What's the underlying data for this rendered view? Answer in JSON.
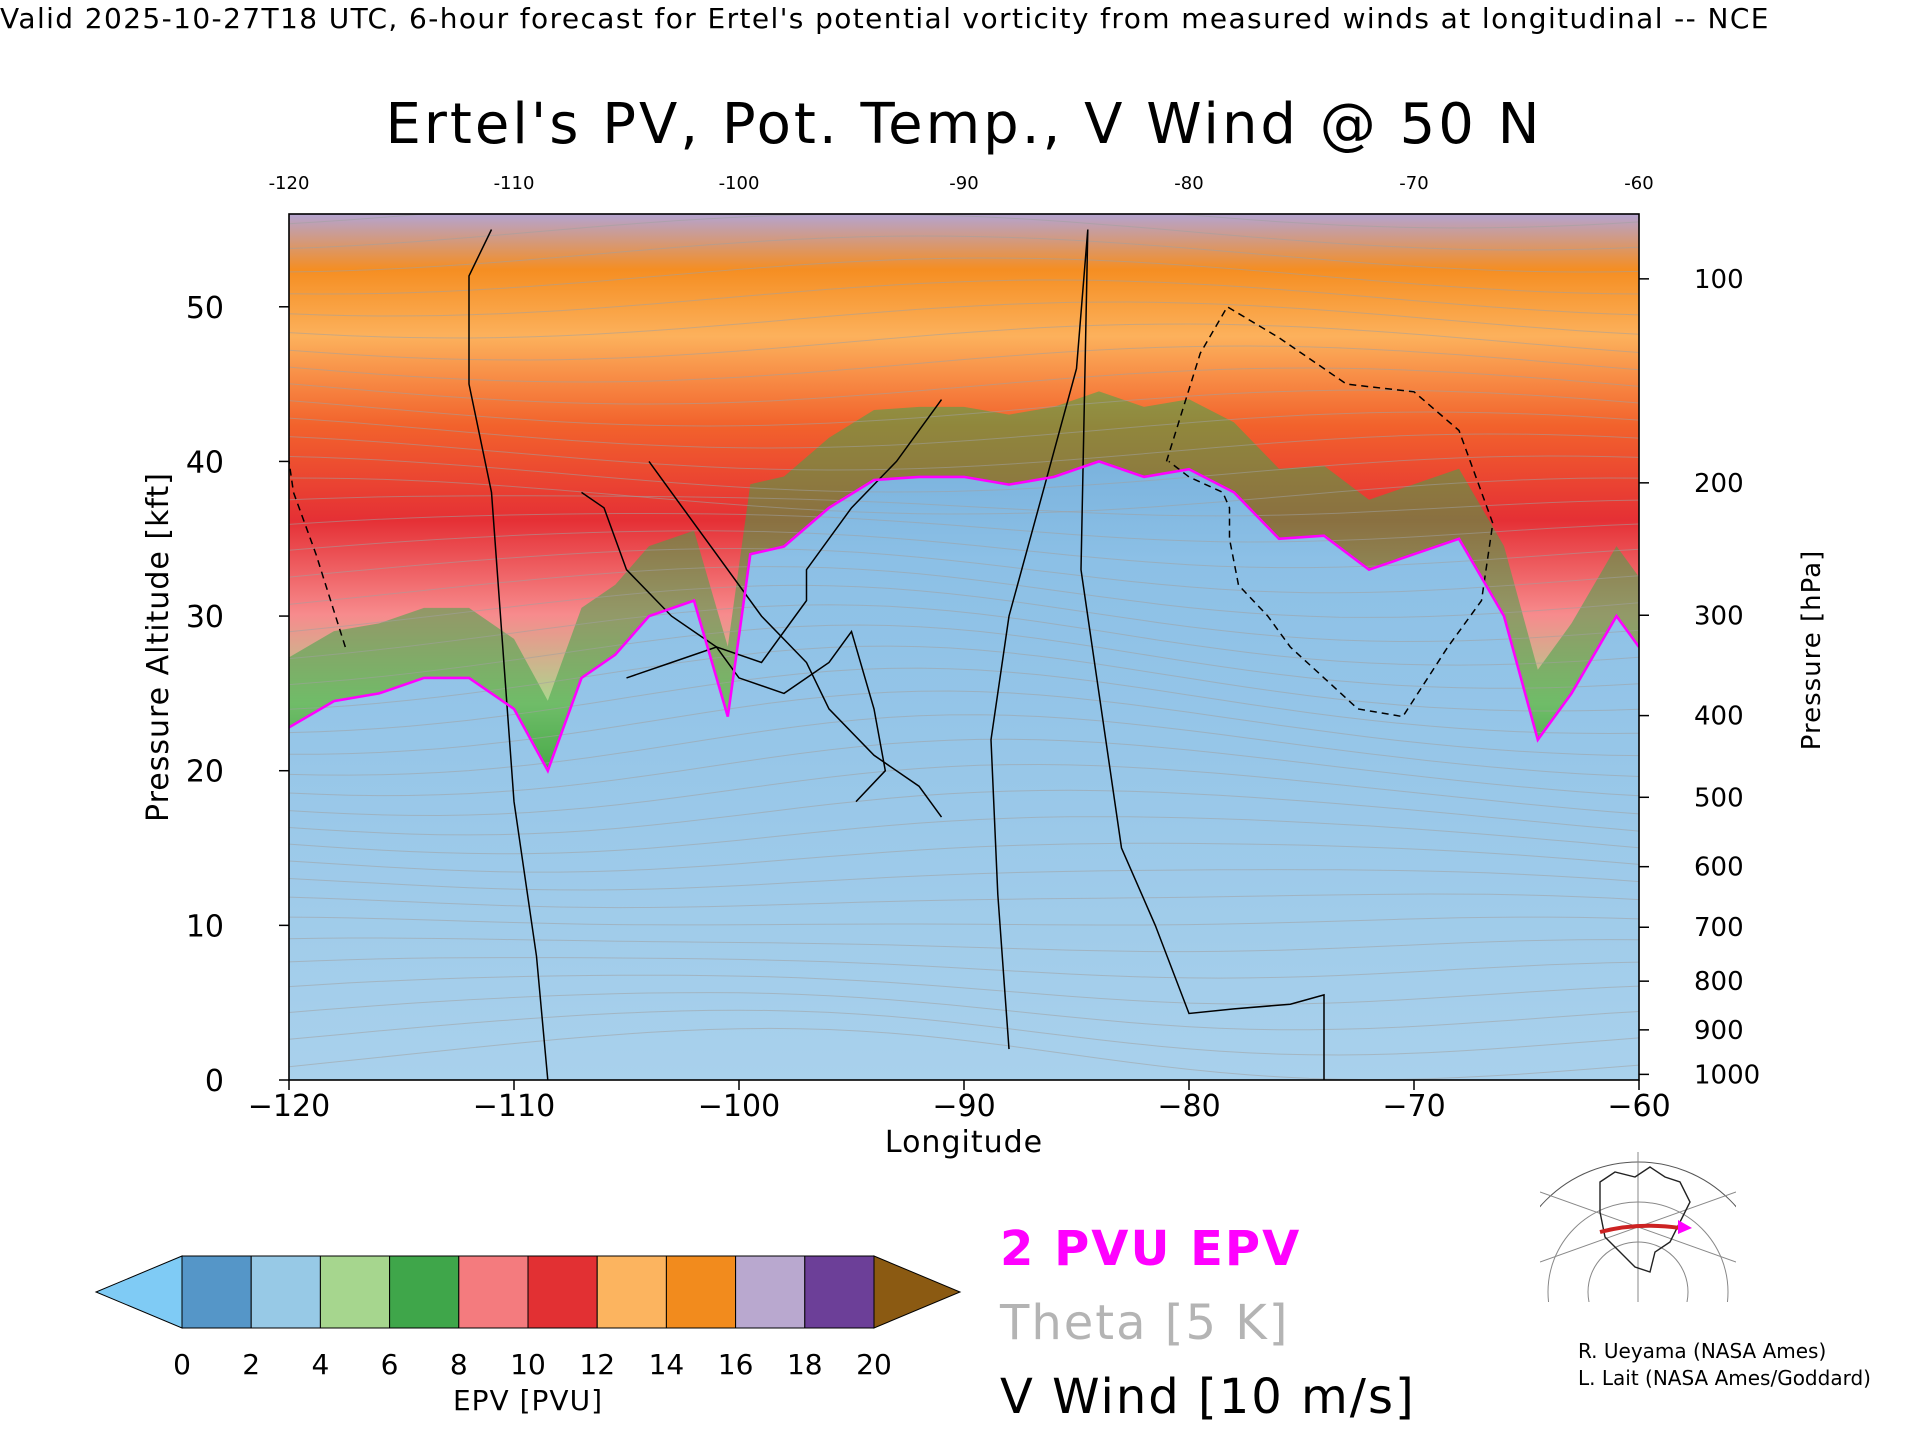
{
  "header": "Valid 2025-10-27T18 UTC, 6-hour forecast for Ertel's potential vorticity from measured winds at longitudinal -- NCE",
  "colors": {
    "pv_contour": "#ff00ff",
    "theta_contour": "#a0a0a0",
    "wind_contour": "#000000",
    "colorbar": [
      "#7fcbf5",
      "#5596c8",
      "#97c9e6",
      "#a6d68e",
      "#3fa64a",
      "#f47b7e",
      "#e23033",
      "#fcb45f",
      "#f28b1d",
      "#b9a8cf",
      "#6c3f98",
      "#fdf5a0",
      "#8b5a12"
    ]
  },
  "chart_data": {
    "type": "heatmap",
    "title": "Ertel's PV, Pot. Temp., V Wind @ 50 N",
    "xlabel": "Longitude",
    "ylabel_left": "Pressure Altitude [kft]",
    "ylabel_right": "Pressure [hPa]",
    "xlim": [
      -120,
      -60
    ],
    "ylim": [
      0,
      56
    ],
    "x_ticks": [
      -120,
      -110,
      -100,
      -90,
      -80,
      -70,
      -60
    ],
    "x_tick_labels": [
      "−120",
      "−110",
      "−100",
      "−90",
      "−80",
      "−70",
      "−60"
    ],
    "top_x_ticks": [
      -120,
      -110,
      -100,
      -90,
      -80,
      -70,
      -60
    ],
    "top_x_tick_labels": [
      "-120",
      "-110",
      "-100",
      "-90",
      "-80",
      "-70",
      "-60"
    ],
    "y_ticks": [
      0,
      10,
      20,
      30,
      40,
      50
    ],
    "y_tick_labels": [
      "0",
      "10",
      "20",
      "30",
      "40",
      "50"
    ],
    "pressure_ticks_hpa": [
      100,
      200,
      300,
      400,
      500,
      600,
      700,
      800,
      900,
      1000
    ],
    "pressure_tick_labels": [
      "100",
      "200",
      "300",
      "400",
      "500",
      "600",
      "700",
      "800",
      "900",
      "1000"
    ],
    "colorbar": {
      "label": "EPV [PVU]",
      "ticks": [
        0,
        2,
        4,
        6,
        8,
        10,
        12,
        14,
        16,
        18,
        20
      ],
      "tick_labels": [
        "0",
        "2",
        "4",
        "6",
        "8",
        "10",
        "12",
        "14",
        "16",
        "18",
        "20"
      ]
    },
    "contours": [
      {
        "name": "2 PVU EPV",
        "x": [
          -120,
          -118,
          -116,
          -114,
          -112,
          -110,
          -108.5,
          -107,
          -105.5,
          -104,
          -102,
          -100.5,
          -99.5,
          -98,
          -96,
          -94,
          -92,
          -90,
          -88,
          -86,
          -84,
          -82,
          -80,
          -78,
          -76,
          -74,
          -72,
          -70,
          -68,
          -66,
          -64.5,
          -63,
          -61,
          -60
        ],
        "y": [
          22.8,
          24.5,
          25,
          26,
          26,
          24,
          20,
          26,
          27.5,
          30,
          31,
          23.5,
          34,
          34.5,
          37,
          38.8,
          39,
          39,
          38.5,
          39,
          40,
          39,
          39.5,
          38,
          35,
          35.2,
          33,
          34,
          35,
          30,
          22,
          25,
          30,
          28
        ]
      },
      {
        "name": "V Wind 0 (left)",
        "x": [
          -108.5,
          -109,
          -110,
          -110.6,
          -111,
          -112,
          -112,
          -111
        ],
        "y": [
          0,
          8,
          18,
          30,
          38,
          45,
          52,
          55
        ]
      },
      {
        "name": "V Wind 0 (centre)",
        "x": [
          -88,
          -88.5,
          -88.8,
          -88,
          -86.5,
          -85,
          -84.5
        ],
        "y": [
          2,
          12,
          22,
          30,
          38,
          46,
          55
        ]
      },
      {
        "name": "V Wind 0 (right)",
        "x": [
          -84.5,
          -84.8,
          -83,
          -81.5,
          -80,
          -78,
          -75.5,
          -74,
          -74
        ],
        "y": [
          55,
          33,
          15,
          10,
          4.3,
          4.6,
          4.9,
          5.5,
          0
        ]
      },
      {
        "name": "V Wind 10 (dashed)",
        "x": [
          -117.5,
          -118.8,
          -119.8,
          -120
        ],
        "y": [
          28,
          34,
          38,
          40
        ]
      },
      {
        "name": "V Wind 10 (dashed, east)",
        "x": [
          -81,
          -79.5,
          -78.3,
          -76,
          -73,
          -70,
          -68,
          -66.5,
          -67,
          -68.5,
          -70.5,
          -72.5,
          -74,
          -75.5,
          -76.5,
          -77.8,
          -78.2,
          -78.2,
          -78.5,
          -80,
          -80.9
        ],
        "y": [
          40,
          47,
          50,
          48,
          45,
          44.5,
          42,
          36,
          31,
          28,
          23.5,
          24,
          26,
          28,
          30,
          32,
          35,
          37,
          38,
          39,
          40
        ]
      },
      {
        "name": "V Wind 10",
        "x": [
          -107,
          -106,
          -105,
          -103,
          -101,
          -99,
          -98,
          -97,
          -97,
          -95,
          -93,
          -91
        ],
        "y": [
          38,
          37,
          33,
          30,
          28,
          27,
          29,
          31,
          33,
          37,
          40,
          44
        ]
      },
      {
        "name": "V Wind 20",
        "x": [
          -104,
          -103,
          -101,
          -99,
          -97,
          -96,
          -94,
          -92,
          -91
        ],
        "y": [
          40,
          38,
          34,
          30,
          27,
          24,
          21,
          19,
          17
        ]
      },
      {
        "name": "V Wind 30",
        "x": [
          -105,
          -103,
          -101,
          -100,
          -98,
          -96,
          -95,
          -94,
          -93.5,
          -94.8
        ],
        "y": [
          26,
          27,
          28,
          26,
          25,
          27,
          29,
          24,
          20,
          18
        ]
      }
    ]
  },
  "legend": {
    "pv": "2 PVU EPV",
    "theta": "Theta [5 K]",
    "vwind": "V Wind [10 m/s]"
  },
  "credits": {
    "line1": "R. Ueyama (NASA Ames)",
    "line2": "L. Lait (NASA Ames/Goddard)"
  },
  "map_inset": {
    "icon": "globe-map-icon",
    "track_color": "#cc2222",
    "marker_color": "#ff00ff"
  }
}
